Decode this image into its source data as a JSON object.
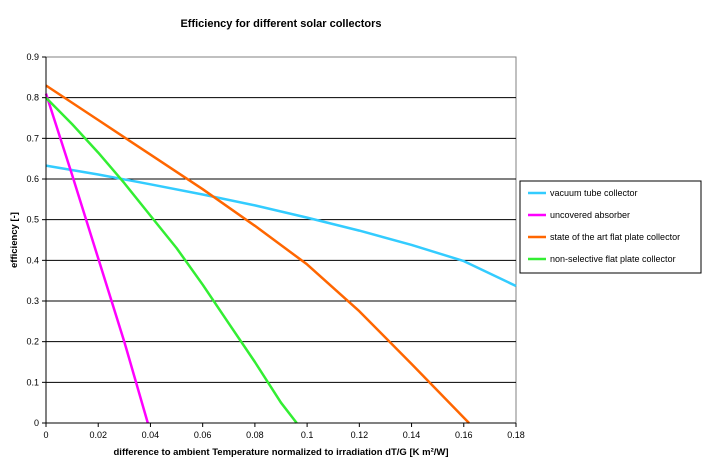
{
  "chart_data": {
    "type": "line",
    "title": "Efficiency for different solar collectors",
    "xlabel": "difference to ambient Temperature normalized to irradiation dT/G [K m²/W]",
    "ylabel": "efficiency [-]",
    "xlim": [
      0,
      0.18
    ],
    "ylim": [
      0,
      0.9
    ],
    "x_ticks": [
      0,
      0.02,
      0.04,
      0.06,
      0.08,
      0.1,
      0.12,
      0.14,
      0.16,
      0.18
    ],
    "x_tick_labels": [
      "0",
      "0.02",
      "0.04",
      "0.06",
      "0.08",
      "0.1",
      "0.12",
      "0.14",
      "0.16",
      "0.18"
    ],
    "y_ticks": [
      0,
      0.1,
      0.2,
      0.3,
      0.4,
      0.5,
      0.6,
      0.7,
      0.8,
      0.9
    ],
    "y_tick_labels": [
      "0",
      "0.1",
      "0.2",
      "0.3",
      "0.4",
      "0.5",
      "0.6",
      "0.7",
      "0.8",
      "0.9"
    ],
    "grid": "horizontal",
    "legend_position": "right",
    "series": [
      {
        "name": "vacuum tube collector",
        "color": "#33ccff",
        "x": [
          0,
          0.02,
          0.04,
          0.06,
          0.08,
          0.1,
          0.12,
          0.14,
          0.16,
          0.18
        ],
        "y": [
          0.633,
          0.611,
          0.587,
          0.562,
          0.535,
          0.505,
          0.473,
          0.438,
          0.398,
          0.337
        ]
      },
      {
        "name": "uncovered absorber",
        "color": "#ff00ff",
        "x": [
          0,
          0.01,
          0.02,
          0.03,
          0.039
        ],
        "y": [
          0.81,
          0.61,
          0.405,
          0.2,
          0.0
        ]
      },
      {
        "name": "state of the art flat plate collector",
        "color": "#ff6600",
        "x": [
          0,
          0.02,
          0.04,
          0.06,
          0.08,
          0.1,
          0.12,
          0.14,
          0.162
        ],
        "y": [
          0.83,
          0.745,
          0.66,
          0.575,
          0.485,
          0.39,
          0.275,
          0.145,
          0.0
        ]
      },
      {
        "name": "non-selective flat plate collector",
        "color": "#33ee33",
        "x": [
          0,
          0.01,
          0.02,
          0.03,
          0.04,
          0.05,
          0.06,
          0.07,
          0.08,
          0.09,
          0.096
        ],
        "y": [
          0.8,
          0.735,
          0.665,
          0.59,
          0.51,
          0.43,
          0.34,
          0.245,
          0.15,
          0.05,
          0.0
        ]
      }
    ]
  }
}
